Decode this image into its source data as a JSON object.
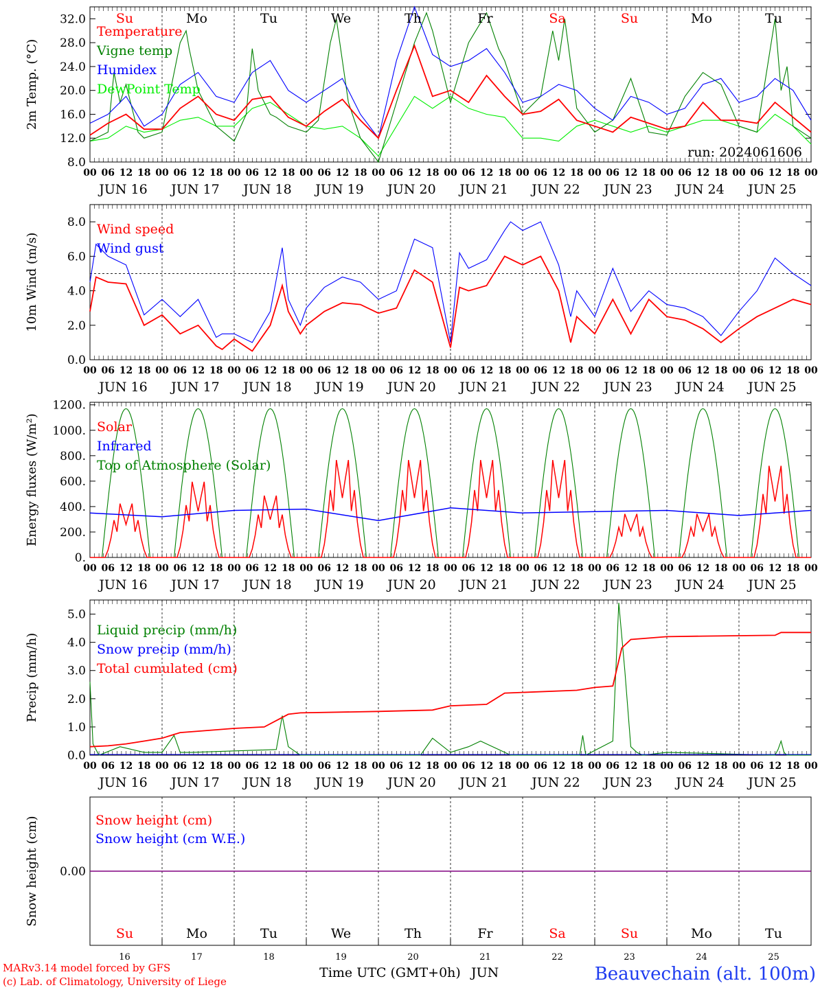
{
  "run_label": "run: 2024061606",
  "footer": {
    "credit_line1": "MARv3.14 model forced by GFS",
    "credit_line2": "(c) Lab. of Climatology, University of Liege",
    "xlabel": "Time UTC (GMT+0h)",
    "month": "JUN",
    "station": "Beauvechain (alt. 100m)"
  },
  "days": {
    "weekdays": [
      "Su",
      "Mo",
      "Tu",
      "We",
      "Th",
      "Fr",
      "Sa",
      "Su",
      "Mo",
      "Tu"
    ],
    "weekend": [
      true,
      false,
      false,
      false,
      false,
      false,
      true,
      true,
      false,
      false
    ],
    "dates": [
      "JUN 16",
      "JUN 17",
      "JUN 18",
      "JUN 19",
      "JUN 20",
      "JUN 21",
      "JUN 22",
      "JUN 23",
      "JUN 24",
      "JUN 25"
    ],
    "day_numbers": [
      "16",
      "17",
      "18",
      "19",
      "20",
      "21",
      "22",
      "23",
      "24",
      "25"
    ],
    "hour_ticks": [
      "00",
      "06",
      "12",
      "18"
    ],
    "final_tick": "00"
  },
  "colors": {
    "red": "#ff0000",
    "green": "#008000",
    "blue": "#0000ff",
    "lightgreen": "#00ee00",
    "weekend": "#ff0000",
    "weekday": "#000000",
    "station": "#1e3cf0",
    "snow_line": "#800080"
  },
  "chart_data": [
    {
      "type": "line",
      "ylabel": "2m Temp. (°C)",
      "ylim": [
        8,
        34
      ],
      "yticks": [
        "8.0",
        "12.0",
        "16.0",
        "20.0",
        "24.0",
        "28.0",
        "32.0"
      ],
      "yticks_values": [
        8,
        12,
        16,
        20,
        24,
        28,
        32
      ],
      "x_unit": "hours since JUN 16 00 UTC",
      "grid": "dashed vertical lines at 00 UTC",
      "legend": "top-left",
      "series": [
        {
          "name": "Temperature",
          "color": "red",
          "x": [
            0,
            6,
            12,
            18,
            24,
            30,
            36,
            42,
            48,
            54,
            60,
            66,
            72,
            78,
            84,
            90,
            96,
            102,
            108,
            114,
            120,
            126,
            132,
            138,
            144,
            150,
            156,
            162,
            168,
            174,
            180,
            186,
            192,
            198,
            204,
            210,
            216,
            222,
            228,
            234,
            240
          ],
          "values": [
            12.5,
            14.5,
            16,
            13.5,
            13.5,
            17,
            19,
            16,
            15,
            18.5,
            19,
            15.5,
            14,
            16.5,
            18.5,
            15,
            12,
            20,
            27.5,
            19,
            20,
            18,
            22.5,
            19,
            16,
            16.5,
            18.5,
            15,
            14,
            13,
            15.5,
            14.5,
            13.5,
            14,
            18,
            15,
            15,
            14.5,
            18,
            15.5,
            13
          ]
        },
        {
          "name": "Vigne temp",
          "color": "green",
          "x": [
            0,
            6,
            8,
            10,
            12,
            16,
            18,
            24,
            30,
            32,
            33,
            36,
            40,
            42,
            48,
            52,
            54,
            56,
            58,
            60,
            62,
            66,
            72,
            76,
            80,
            82,
            84,
            86,
            90,
            96,
            102,
            108,
            112,
            114,
            118,
            120,
            126,
            132,
            136,
            138,
            144,
            150,
            154,
            156,
            158,
            162,
            168,
            174,
            180,
            186,
            192,
            198,
            204,
            210,
            216,
            222,
            228,
            230,
            232,
            234,
            240
          ],
          "values": [
            11.5,
            13,
            23,
            18,
            21,
            13,
            12,
            13,
            28,
            30,
            27,
            20,
            16,
            14,
            11.5,
            16,
            27,
            20,
            18,
            16,
            15.5,
            14,
            13,
            15,
            28,
            32,
            25,
            18,
            12,
            8,
            18,
            28,
            33,
            30,
            22,
            18,
            28,
            33,
            27,
            25,
            16,
            19,
            30,
            25,
            32,
            17,
            13,
            15,
            22,
            13,
            12.5,
            19,
            23,
            21,
            14,
            13,
            32,
            20,
            24,
            14,
            12
          ]
        },
        {
          "name": "Humidex",
          "color": "blue",
          "x": [
            0,
            6,
            12,
            18,
            24,
            30,
            36,
            42,
            48,
            54,
            60,
            66,
            72,
            78,
            84,
            90,
            96,
            102,
            108,
            114,
            120,
            126,
            132,
            138,
            144,
            150,
            156,
            162,
            168,
            174,
            180,
            186,
            192,
            198,
            204,
            210,
            216,
            222,
            228,
            234,
            240
          ],
          "values": [
            14.5,
            16,
            19,
            14,
            16,
            21,
            23,
            19,
            18,
            23,
            25,
            20,
            18,
            20,
            22,
            16,
            12,
            25,
            34,
            26,
            24,
            25,
            27,
            23,
            18,
            19,
            21,
            20,
            17,
            15,
            19,
            18,
            16,
            17,
            21,
            22,
            18,
            19,
            22,
            20,
            15
          ]
        },
        {
          "name": "DewPoint Temp",
          "color": "lightgreen",
          "x": [
            0,
            6,
            12,
            18,
            24,
            30,
            36,
            42,
            48,
            54,
            60,
            66,
            72,
            78,
            84,
            90,
            96,
            102,
            108,
            114,
            120,
            126,
            132,
            138,
            144,
            150,
            156,
            162,
            168,
            174,
            180,
            186,
            192,
            198,
            204,
            210,
            216,
            222,
            228,
            234,
            240
          ],
          "values": [
            11.5,
            12,
            14,
            13,
            13.5,
            15,
            15.5,
            14,
            14,
            17,
            18,
            16,
            14,
            13.5,
            14,
            12,
            9,
            14,
            19,
            17,
            19,
            17,
            16,
            15.5,
            12,
            12,
            11.5,
            14,
            15,
            14,
            13,
            14,
            13,
            14,
            15,
            15,
            14,
            13,
            16,
            14,
            11
          ]
        }
      ]
    },
    {
      "type": "line",
      "ylabel": "10m Wind (m/s)",
      "ylim": [
        0,
        9
      ],
      "yticks": [
        "0.0",
        "2.0",
        "4.0",
        "6.0",
        "8.0"
      ],
      "yticks_values": [
        0,
        2,
        4,
        6,
        8
      ],
      "reference_line": 5,
      "legend": "top-left",
      "series": [
        {
          "name": "Wind speed",
          "color": "red",
          "x": [
            0,
            2,
            6,
            12,
            18,
            24,
            30,
            36,
            42,
            44,
            48,
            54,
            60,
            64,
            66,
            70,
            72,
            78,
            84,
            90,
            96,
            102,
            108,
            114,
            120,
            123,
            126,
            132,
            138,
            144,
            150,
            156,
            160,
            162,
            168,
            174,
            180,
            186,
            192,
            198,
            204,
            210,
            216,
            222,
            228,
            234,
            240
          ],
          "values": [
            2.8,
            4.8,
            4.5,
            4.4,
            2.0,
            2.6,
            1.5,
            2.0,
            0.8,
            0.6,
            1.2,
            0.5,
            2.0,
            4.3,
            2.8,
            1.5,
            2.0,
            2.8,
            3.3,
            3.2,
            2.7,
            3.0,
            5.2,
            4.5,
            0.7,
            4.2,
            4.0,
            4.3,
            6.0,
            5.5,
            6.0,
            4.0,
            1.0,
            2.5,
            1.5,
            3.5,
            1.5,
            3.5,
            2.5,
            2.3,
            1.8,
            1.0,
            1.8,
            2.5,
            3.0,
            3.5,
            3.2
          ]
        },
        {
          "name": "Wind gust",
          "color": "blue",
          "x": [
            0,
            2,
            6,
            12,
            18,
            24,
            30,
            36,
            42,
            44,
            48,
            54,
            60,
            64,
            66,
            70,
            72,
            78,
            84,
            90,
            96,
            102,
            108,
            114,
            120,
            123,
            126,
            132,
            138,
            140,
            144,
            150,
            156,
            160,
            162,
            168,
            174,
            180,
            186,
            192,
            198,
            204,
            210,
            216,
            222,
            228,
            234,
            240
          ],
          "values": [
            4.5,
            6.7,
            6.0,
            5.5,
            2.6,
            3.5,
            2.5,
            3.5,
            1.3,
            1.5,
            1.5,
            1.0,
            2.8,
            6.5,
            3.5,
            2.0,
            3.0,
            4.2,
            4.8,
            4.5,
            3.5,
            4.0,
            7.0,
            6.5,
            1.0,
            6.2,
            5.3,
            5.8,
            7.5,
            8.0,
            7.5,
            8.0,
            5.5,
            2.5,
            4.0,
            2.5,
            5.3,
            2.8,
            4.0,
            3.2,
            3.0,
            2.5,
            1.4,
            2.8,
            4.0,
            5.9,
            5.0,
            4.3
          ]
        }
      ]
    },
    {
      "type": "line",
      "ylabel": "Energy fluxes (W/m²)",
      "ylim": [
        0,
        1220
      ],
      "yticks": [
        "0.",
        "200.",
        "400.",
        "600.",
        "800.",
        "1000.",
        "1200."
      ],
      "yticks_values": [
        0,
        200,
        400,
        600,
        800,
        1000,
        1200
      ],
      "legend": "top-left",
      "series": [
        {
          "name": "Solar",
          "color": "red",
          "peaks": [
            470,
            660,
            540,
            850,
            850,
            850,
            850,
            380,
            380,
            800
          ]
        },
        {
          "name": "Infrared",
          "color": "blue",
          "values": [
            350,
            320,
            370,
            380,
            290,
            390,
            350,
            360,
            370,
            330,
            370
          ]
        },
        {
          "name": "Top of Atmosphere (Solar)",
          "color": "green",
          "peak": 1170,
          "sunrise_hour": 4,
          "sunset_hour": 20
        }
      ]
    },
    {
      "type": "line",
      "ylabel": "Precip (mm/h)",
      "ylim": [
        0,
        5.5
      ],
      "yticks": [
        "0.0",
        "1.0",
        "2.0",
        "3.0",
        "4.0",
        "5.0"
      ],
      "yticks_values": [
        0,
        1,
        2,
        3,
        4,
        5
      ],
      "legend": "top-left",
      "series": [
        {
          "name": "Liquid precip (mm/h)",
          "color": "green",
          "x": [
            0,
            1,
            3,
            10,
            18,
            24,
            28,
            30,
            34,
            62,
            64,
            66,
            70,
            110,
            114,
            120,
            126,
            130,
            132,
            136,
            140,
            163,
            164,
            165,
            174,
            176,
            178,
            180,
            182,
            184,
            192,
            228,
            229,
            230,
            231,
            232,
            240
          ],
          "values": [
            2.6,
            0.4,
            0,
            0.3,
            0.1,
            0.1,
            0.7,
            0.1,
            0.1,
            0.2,
            1.4,
            0.3,
            0,
            0,
            0.6,
            0.1,
            0.3,
            0.5,
            0.4,
            0.2,
            0,
            0,
            0.7,
            0,
            0.5,
            5.4,
            3.0,
            0.3,
            0.1,
            0,
            0.1,
            0,
            0.2,
            0.5,
            0.1,
            0,
            0
          ]
        },
        {
          "name": "Snow precip (mm/h)",
          "color": "blue",
          "values": [
            0,
            0
          ]
        },
        {
          "name": "Total cumulated (cm)",
          "color": "red",
          "x": [
            0,
            6,
            12,
            18,
            24,
            30,
            36,
            48,
            58,
            66,
            70,
            96,
            114,
            120,
            132,
            138,
            162,
            168,
            174,
            177,
            180,
            192,
            204,
            228,
            230,
            240
          ],
          "values": [
            0.3,
            0.33,
            0.4,
            0.5,
            0.6,
            0.8,
            0.85,
            0.95,
            1.0,
            1.45,
            1.5,
            1.55,
            1.6,
            1.75,
            1.8,
            2.2,
            2.3,
            2.4,
            2.45,
            3.8,
            4.1,
            4.2,
            4.22,
            4.25,
            4.35,
            4.35
          ]
        }
      ]
    },
    {
      "type": "line",
      "ylabel": "Snow height (cm)",
      "yticks": [
        "0.00"
      ],
      "yticks_values": [
        0
      ],
      "legend": "top-left",
      "series": [
        {
          "name": "Snow height (cm)",
          "color": "red",
          "values": [
            0,
            0
          ]
        },
        {
          "name": "Snow height (cm W.E.)",
          "color": "blue",
          "values": [
            0,
            0
          ]
        }
      ]
    }
  ]
}
